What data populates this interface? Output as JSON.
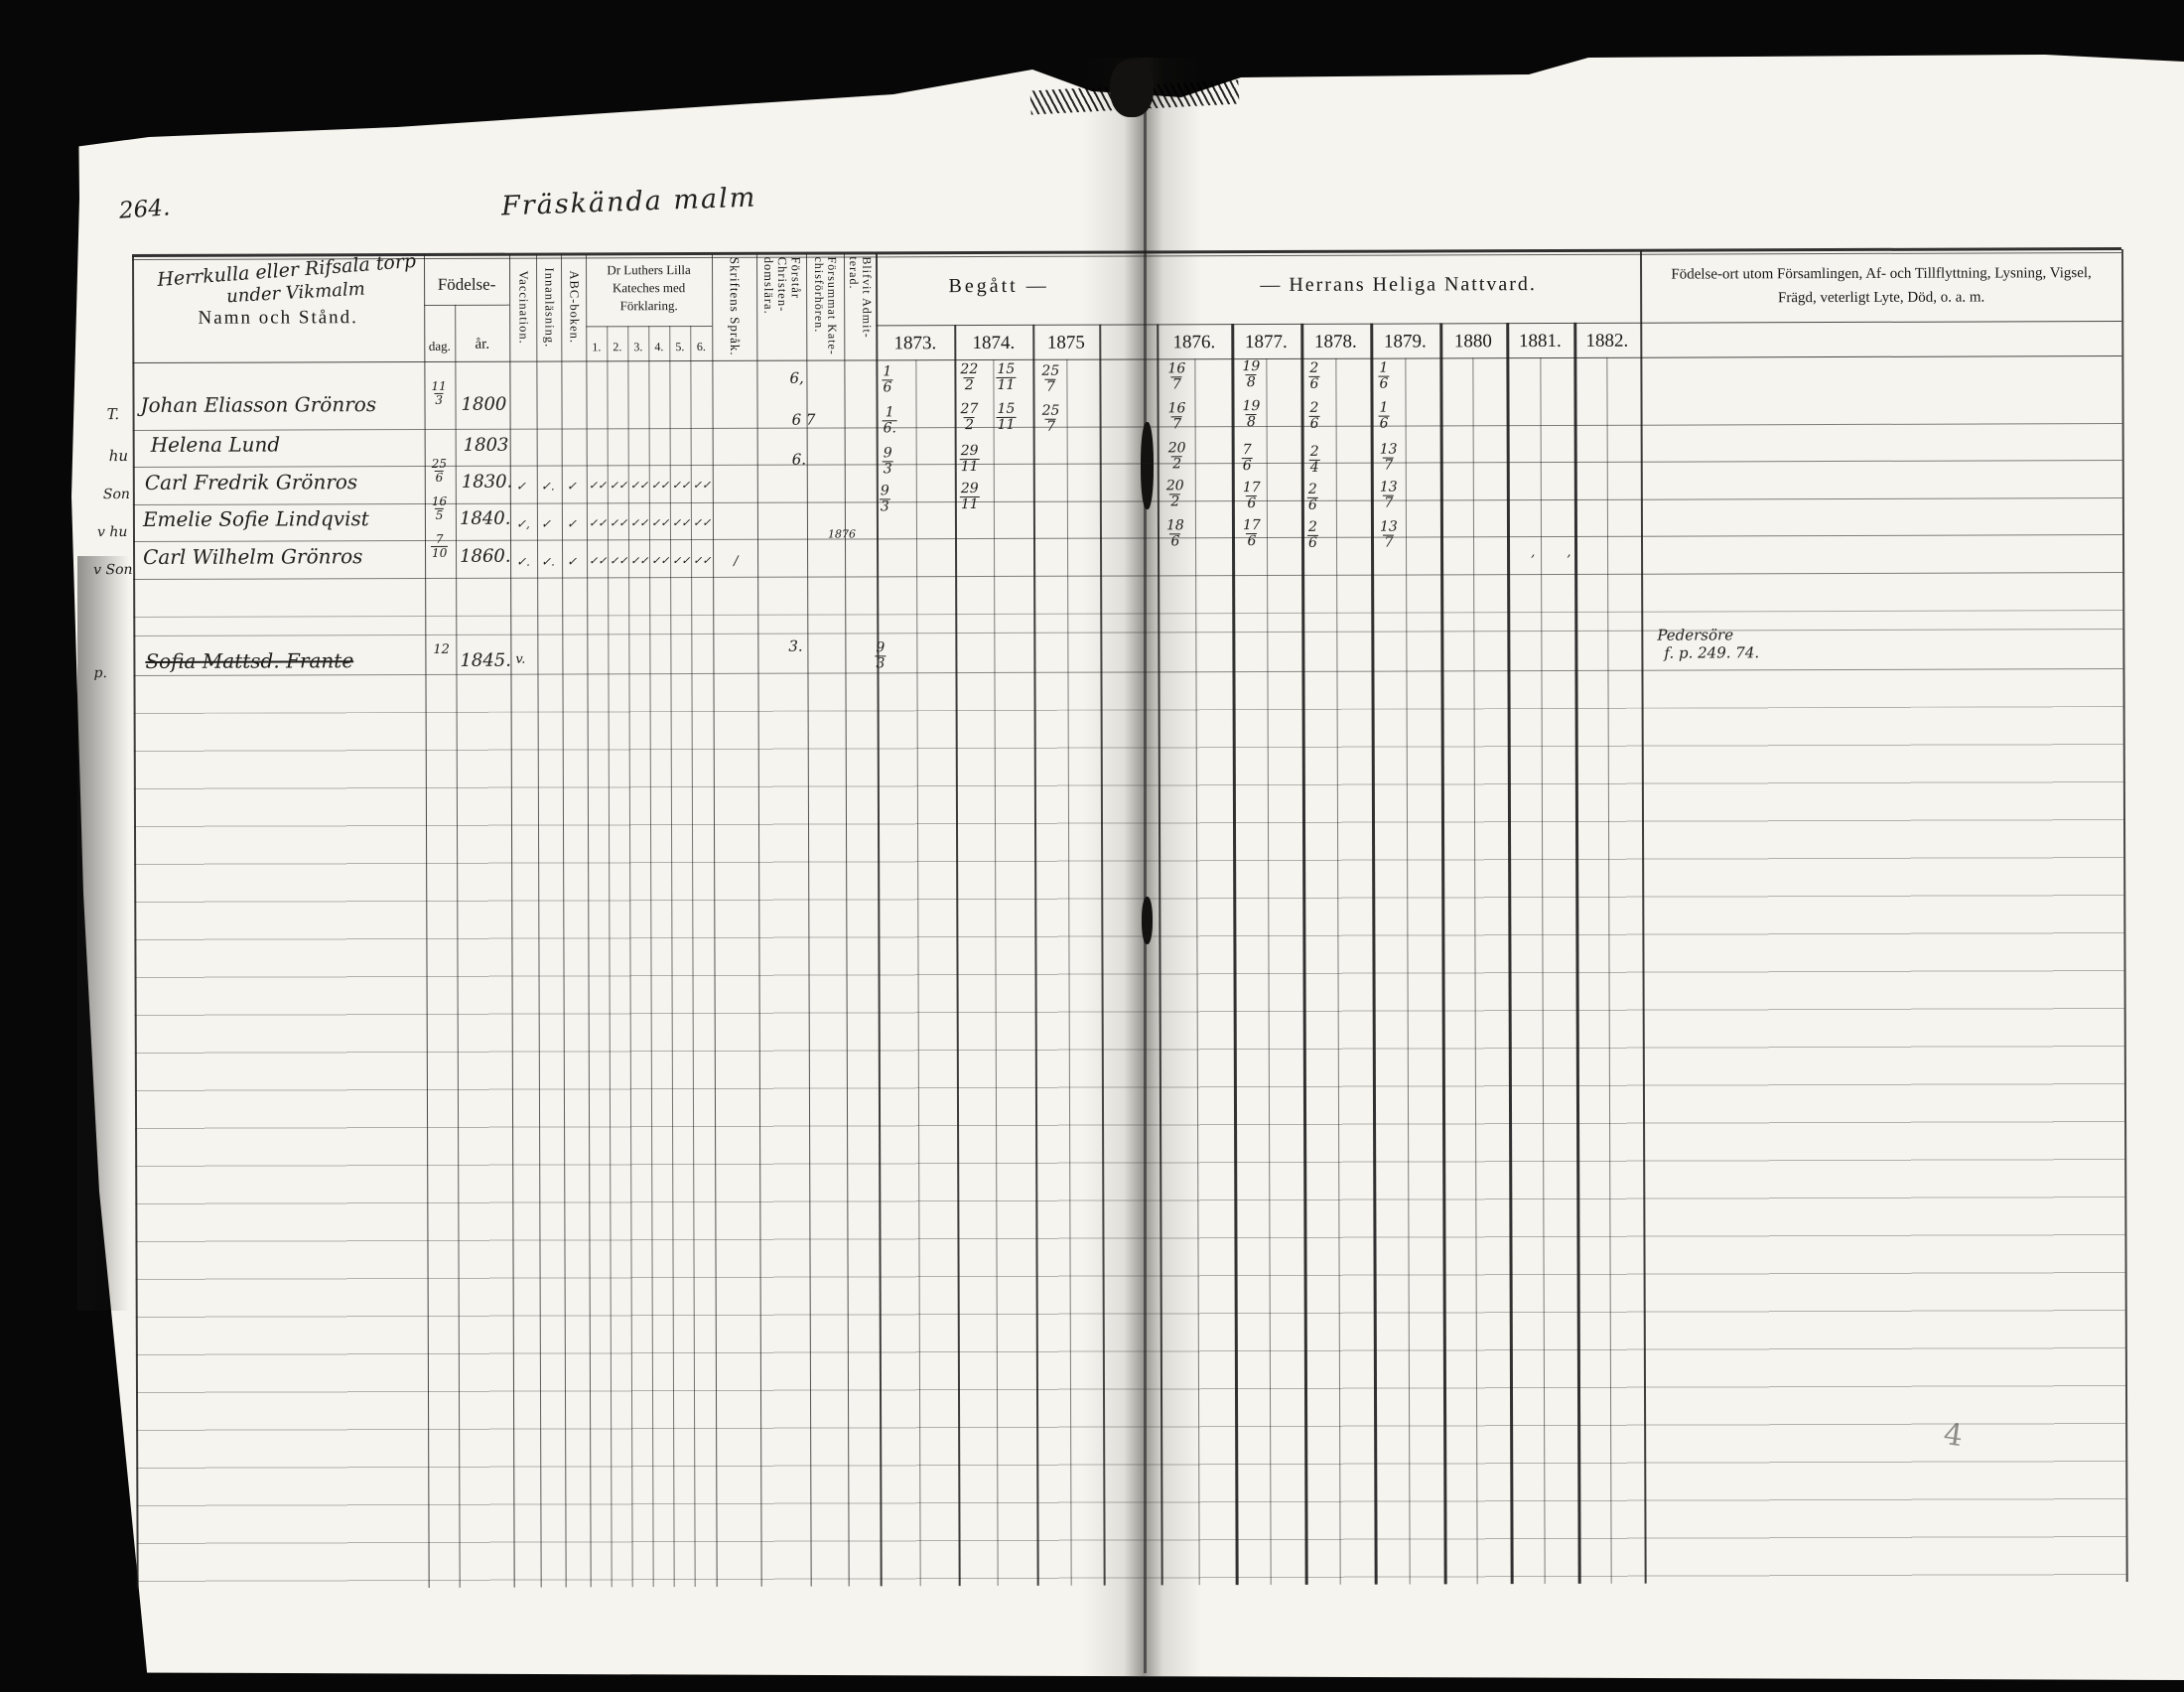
{
  "colors": {
    "paper": "#f6f4ee",
    "ink": "#21201d",
    "scan_border": "#070707"
  },
  "scan": {
    "page_number": "264.",
    "handwritten_title": "Fräskända malm",
    "pencil_note": "4"
  },
  "header": {
    "hand_note_line1": "Herrkulla eller Rifsala torp",
    "hand_note_line2": "under Vikmalm",
    "name_col": "Namn och Stånd.",
    "birth": "Födelse-",
    "birth_day": "dag.",
    "birth_year": "år.",
    "vaccination": "Vaccination.",
    "reading": "Innanläsning.",
    "abc_book": "ABC-boken.",
    "catechism_line1": "Dr Luthers Lilla",
    "catechism_line2": "Kateches med",
    "catechism_line3": "Förklaring.",
    "catechism_cols": [
      "1.",
      "2.",
      "3.",
      "4.",
      "5.",
      "6."
    ],
    "scripture": "Skriftens Språk.",
    "understands": "Förstår Christen- domslära.",
    "missed": "Försummat Kate- chisförhören.",
    "admitted": "Blifvit Admit- terad.",
    "communion_left": "Begått   —",
    "communion_right": "—   Herrans Heliga Nattvard.",
    "notes_line1": "Födelse-ort utom Församlingen, Af- och Tillflyttning, Lysning, Vigsel,",
    "notes_line2": "Frägd, veterligt Lyte, Död, o. a. m."
  },
  "years": [
    "1873.",
    "1874.",
    "1875",
    "1876.",
    "1877.",
    "1878.",
    "1879.",
    "1880",
    "1881.",
    "1882."
  ],
  "rows": [
    {
      "prefix": "T.",
      "name": "Johan Eliasson Grönros",
      "day": "11/3",
      "year": "1800",
      "understands": "6,",
      "y1873": "1/6",
      "y1874a": "22/2",
      "y1874b": "15/11",
      "y1875": "25/7",
      "y1876": "16/7",
      "y1877": "19/8",
      "y1878": "2/6",
      "y1879": "1/6"
    },
    {
      "prefix": "hu",
      "name": "Helena Lund",
      "year": "1803",
      "understands": "6 7",
      "y1873": "1/6.",
      "y1874a": "27/2",
      "y1874b": "15/11",
      "y1875": "25/7",
      "y1876": "16/7",
      "y1877": "19/8",
      "y1878": "2/6",
      "y1879": "1/6"
    },
    {
      "prefix": "Son",
      "name": "Carl Fredrik Grönros",
      "day": "25/6",
      "year": "1830.",
      "marks": [
        "✓",
        "✓.",
        "✓",
        "✓✓",
        "✓✓",
        "✓✓",
        "✓✓",
        "✓✓",
        "✓✓"
      ],
      "understands": "6.",
      "y1873": "9/3",
      "y1874a": "29/11",
      "y1876": "20/2",
      "y1877": "7/6",
      "y1878": "2/4",
      "y1879": "13/7"
    },
    {
      "prefix": "v hu",
      "name": "Emelie Sofie Lindqvist",
      "day": "16/5",
      "year": "1840.",
      "marks": [
        "✓,",
        "✓",
        "✓",
        "✓✓",
        "✓✓",
        "✓✓",
        "✓✓",
        "✓✓",
        "✓✓"
      ],
      "missed": "1876",
      "y1873": "9/3",
      "y1874a": "29/11",
      "y1876": "20/2",
      "y1877": "17/6",
      "y1878": "2/6",
      "y1879": "13/7"
    },
    {
      "prefix": "v Son",
      "name": "Carl Wilhelm Grönros",
      "day": "7/10",
      "year": "1860.",
      "marks": [
        "✓.",
        "✓.",
        "✓",
        "✓✓",
        "✓✓",
        "✓✓",
        "✓✓",
        "✓✓",
        "✓✓"
      ],
      "scripture": "/",
      "y1876": "18/6",
      "y1877": "17/6",
      "y1878": "2/6",
      "y1879": "13/7",
      "y1881": ", ,"
    },
    {
      "prefix": "p.",
      "name": "Sofia Mattsd. Frante",
      "day": "12",
      "year": "1845.",
      "vaccination": "v.",
      "understands": "3.",
      "y1873": "9/3",
      "note_line1": "Pedersöre",
      "note_line2": "f. p. 249. 74."
    }
  ]
}
